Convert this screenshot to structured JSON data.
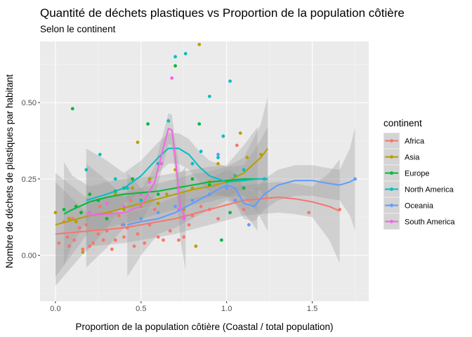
{
  "chart_data": {
    "type": "scatter",
    "title": "Quantité de déchets plastiques vs Proportion de la population côtière",
    "subtitle": "Selon le continent",
    "xlabel": "Proportion de la population côtière (Coastal / total population)",
    "ylabel": "Nombre de déchets de plastiques par habitant",
    "xlim": [
      -0.09,
      1.83
    ],
    "ylim": [
      -0.15,
      0.7
    ],
    "xticks": [
      0.0,
      0.5,
      1.0,
      1.5
    ],
    "xtick_labels": [
      "0.0",
      "0.5",
      "1.0",
      "1.5"
    ],
    "yticks": [
      0.0,
      0.25,
      0.5
    ],
    "ytick_labels": [
      "0.00",
      "0.25",
      "0.50"
    ],
    "grid": true,
    "legend_position": "right",
    "legend": {
      "title": "continent",
      "entries": [
        "Africa",
        "Asia",
        "Europe",
        "North America",
        "Oceania",
        "South America"
      ]
    },
    "series": [
      {
        "name": "Africa",
        "color": "#F8766D",
        "points": [
          [
            0.02,
            0.04
          ],
          [
            0.05,
            0.11
          ],
          [
            0.07,
            0.06
          ],
          [
            0.08,
            0.03
          ],
          [
            0.1,
            0.12
          ],
          [
            0.11,
            0.05
          ],
          [
            0.14,
            0.09
          ],
          [
            0.16,
            0.02
          ],
          [
            0.18,
            0.1
          ],
          [
            0.2,
            0.03
          ],
          [
            0.22,
            0.04
          ],
          [
            0.25,
            0.07
          ],
          [
            0.26,
            0.16
          ],
          [
            0.28,
            0.05
          ],
          [
            0.3,
            0.08
          ],
          [
            0.32,
            0.14
          ],
          [
            0.33,
            0.02
          ],
          [
            0.35,
            0.05
          ],
          [
            0.37,
            0.13
          ],
          [
            0.39,
            0.1
          ],
          [
            0.4,
            0.06
          ],
          [
            0.42,
            0.09
          ],
          [
            0.44,
            0.18
          ],
          [
            0.46,
            0.03
          ],
          [
            0.48,
            0.07
          ],
          [
            0.5,
            0.12
          ],
          [
            0.52,
            0.04
          ],
          [
            0.55,
            0.1
          ],
          [
            0.58,
            0.15
          ],
          [
            0.6,
            0.06
          ],
          [
            0.63,
            0.05
          ],
          [
            0.67,
            0.08
          ],
          [
            0.72,
            0.05
          ],
          [
            0.75,
            0.06
          ],
          [
            0.78,
            0.1
          ],
          [
            0.8,
            0.13
          ],
          [
            0.85,
            0.16
          ],
          [
            0.9,
            0.15
          ],
          [
            0.95,
            0.12
          ],
          [
            1.06,
            0.36
          ],
          [
            1.1,
            0.15
          ],
          [
            1.48,
            0.14
          ],
          [
            1.66,
            0.15
          ]
        ],
        "trend": [
          [
            0.0,
            0.07
          ],
          [
            0.1,
            0.075
          ],
          [
            0.2,
            0.08
          ],
          [
            0.3,
            0.085
          ],
          [
            0.4,
            0.09
          ],
          [
            0.5,
            0.1
          ],
          [
            0.6,
            0.11
          ],
          [
            0.7,
            0.12
          ],
          [
            0.8,
            0.135
          ],
          [
            0.9,
            0.15
          ],
          [
            1.0,
            0.165
          ],
          [
            1.1,
            0.18
          ],
          [
            1.2,
            0.185
          ],
          [
            1.3,
            0.19
          ],
          [
            1.4,
            0.185
          ],
          [
            1.5,
            0.175
          ],
          [
            1.6,
            0.16
          ],
          [
            1.66,
            0.145
          ]
        ]
      },
      {
        "name": "Asia",
        "color": "#B79F00",
        "points": [
          [
            0.0,
            0.14
          ],
          [
            0.08,
            0.12
          ],
          [
            0.12,
            0.11
          ],
          [
            0.16,
            0.01
          ],
          [
            0.2,
            0.14
          ],
          [
            0.25,
            0.18
          ],
          [
            0.3,
            0.12
          ],
          [
            0.35,
            0.2
          ],
          [
            0.4,
            0.15
          ],
          [
            0.45,
            0.22
          ],
          [
            0.48,
            0.37
          ],
          [
            0.5,
            0.16
          ],
          [
            0.55,
            0.25
          ],
          [
            0.6,
            0.17
          ],
          [
            0.65,
            0.2
          ],
          [
            0.7,
            0.28
          ],
          [
            0.75,
            0.15
          ],
          [
            0.8,
            0.22
          ],
          [
            0.82,
            0.03
          ],
          [
            0.84,
            0.69
          ],
          [
            0.9,
            0.24
          ],
          [
            0.95,
            0.3
          ],
          [
            1.0,
            0.24
          ],
          [
            1.05,
            0.26
          ],
          [
            1.08,
            0.4
          ],
          [
            1.12,
            0.32
          ],
          [
            1.2,
            0.33
          ]
        ],
        "trend": [
          [
            0.0,
            0.1
          ],
          [
            0.1,
            0.115
          ],
          [
            0.2,
            0.13
          ],
          [
            0.3,
            0.14
          ],
          [
            0.4,
            0.155
          ],
          [
            0.5,
            0.17
          ],
          [
            0.6,
            0.185
          ],
          [
            0.7,
            0.2
          ],
          [
            0.8,
            0.215
          ],
          [
            0.9,
            0.225
          ],
          [
            1.0,
            0.24
          ],
          [
            1.1,
            0.27
          ],
          [
            1.2,
            0.32
          ],
          [
            1.24,
            0.35
          ]
        ]
      },
      {
        "name": "Europe",
        "color": "#00BA38",
        "points": [
          [
            0.05,
            0.15
          ],
          [
            0.1,
            0.48
          ],
          [
            0.12,
            0.16
          ],
          [
            0.15,
            0.14
          ],
          [
            0.2,
            0.2
          ],
          [
            0.25,
            0.18
          ],
          [
            0.3,
            0.12
          ],
          [
            0.35,
            0.21
          ],
          [
            0.4,
            0.22
          ],
          [
            0.45,
            0.25
          ],
          [
            0.5,
            0.18
          ],
          [
            0.54,
            0.43
          ],
          [
            0.6,
            0.2
          ],
          [
            0.7,
            0.62
          ],
          [
            0.8,
            0.25
          ],
          [
            0.84,
            0.43
          ],
          [
            0.9,
            0.23
          ],
          [
            0.97,
            0.05
          ],
          [
            1.02,
            0.14
          ],
          [
            1.1,
            0.22
          ]
        ],
        "trend": [
          [
            0.05,
            0.135
          ],
          [
            0.1,
            0.15
          ],
          [
            0.2,
            0.175
          ],
          [
            0.3,
            0.19
          ],
          [
            0.4,
            0.2
          ],
          [
            0.5,
            0.205
          ],
          [
            0.6,
            0.21
          ],
          [
            0.7,
            0.22
          ],
          [
            0.8,
            0.23
          ],
          [
            0.9,
            0.24
          ],
          [
            1.0,
            0.245
          ],
          [
            1.1,
            0.25
          ],
          [
            1.18,
            0.25
          ]
        ]
      },
      {
        "name": "North America",
        "color": "#00BFC4",
        "points": [
          [
            0.18,
            0.28
          ],
          [
            0.26,
            0.33
          ],
          [
            0.35,
            0.25
          ],
          [
            0.42,
            0.22
          ],
          [
            0.5,
            0.18
          ],
          [
            0.6,
            0.3
          ],
          [
            0.66,
            0.44
          ],
          [
            0.7,
            0.65
          ],
          [
            0.76,
            0.66
          ],
          [
            0.8,
            0.3
          ],
          [
            0.85,
            0.34
          ],
          [
            0.9,
            0.52
          ],
          [
            0.95,
            0.32
          ],
          [
            0.98,
            0.39
          ],
          [
            1.02,
            0.57
          ],
          [
            1.05,
            0.26
          ],
          [
            1.1,
            0.28
          ],
          [
            1.22,
            0.25
          ]
        ],
        "trend": [
          [
            0.18,
            0.18
          ],
          [
            0.3,
            0.2
          ],
          [
            0.4,
            0.22
          ],
          [
            0.5,
            0.26
          ],
          [
            0.6,
            0.32
          ],
          [
            0.66,
            0.35
          ],
          [
            0.72,
            0.35
          ],
          [
            0.78,
            0.33
          ],
          [
            0.84,
            0.29
          ],
          [
            0.9,
            0.26
          ],
          [
            1.0,
            0.24
          ],
          [
            1.1,
            0.245
          ],
          [
            1.18,
            0.25
          ],
          [
            1.24,
            0.25
          ]
        ]
      },
      {
        "name": "Oceania",
        "color": "#619CFF",
        "points": [
          [
            0.4,
            0.1
          ],
          [
            0.5,
            0.12
          ],
          [
            0.6,
            0.14
          ],
          [
            0.7,
            0.16
          ],
          [
            0.8,
            0.18
          ],
          [
            0.9,
            0.2
          ],
          [
            0.95,
            0.33
          ],
          [
            1.0,
            0.22
          ],
          [
            1.05,
            0.18
          ],
          [
            1.13,
            0.1
          ],
          [
            1.75,
            0.25
          ]
        ],
        "trend": [
          [
            0.42,
            0.1
          ],
          [
            0.5,
            0.11
          ],
          [
            0.6,
            0.12
          ],
          [
            0.7,
            0.14
          ],
          [
            0.8,
            0.17
          ],
          [
            0.9,
            0.2
          ],
          [
            1.0,
            0.23
          ],
          [
            1.05,
            0.22
          ],
          [
            1.1,
            0.17
          ],
          [
            1.16,
            0.16
          ],
          [
            1.22,
            0.2
          ],
          [
            1.3,
            0.23
          ],
          [
            1.4,
            0.245
          ],
          [
            1.5,
            0.245
          ],
          [
            1.6,
            0.235
          ],
          [
            1.66,
            0.23
          ],
          [
            1.72,
            0.24
          ],
          [
            1.75,
            0.25
          ]
        ]
      },
      {
        "name": "South America",
        "color": "#F564E3",
        "points": [
          [
            0.2,
            0.14
          ],
          [
            0.3,
            0.17
          ],
          [
            0.4,
            0.16
          ],
          [
            0.5,
            0.2
          ],
          [
            0.55,
            0.24
          ],
          [
            0.62,
            0.3
          ],
          [
            0.68,
            0.58
          ],
          [
            0.72,
            0.15
          ],
          [
            0.75,
            0.12
          ]
        ],
        "trend": [
          [
            0.18,
            0.13
          ],
          [
            0.3,
            0.135
          ],
          [
            0.4,
            0.14
          ],
          [
            0.5,
            0.16
          ],
          [
            0.58,
            0.24
          ],
          [
            0.62,
            0.33
          ],
          [
            0.66,
            0.415
          ],
          [
            0.68,
            0.41
          ],
          [
            0.7,
            0.32
          ],
          [
            0.73,
            0.16
          ],
          [
            0.76,
            0.12
          ]
        ]
      }
    ]
  }
}
